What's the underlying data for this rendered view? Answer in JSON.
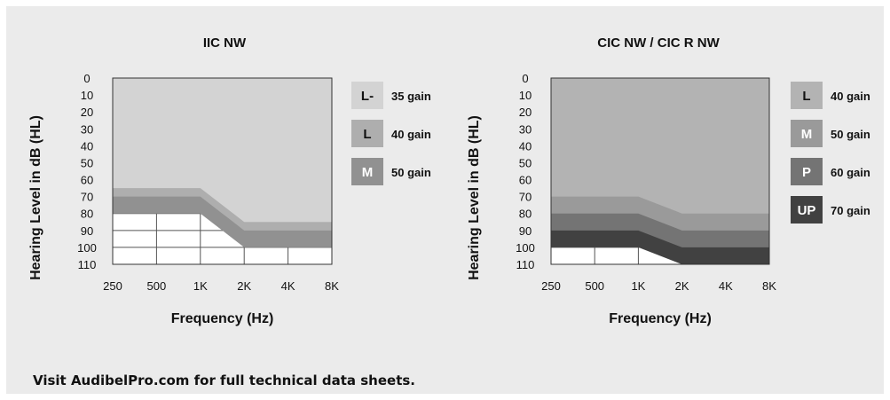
{
  "footer": {
    "text": "Visit AudibelPro.com for full technical data sheets."
  },
  "chart_data": [
    {
      "type": "area",
      "title": "IIC NW",
      "xlabel": "Frequency (Hz)",
      "ylabel": "Hearing Level in dB (HL)",
      "x_ticks": [
        "250",
        "500",
        "1K",
        "2K",
        "4K",
        "8K"
      ],
      "y_ticks": [
        "0",
        "10",
        "20",
        "30",
        "40",
        "50",
        "60",
        "70",
        "80",
        "90",
        "100",
        "110"
      ],
      "ylim": [
        0,
        110
      ],
      "y_inverted": true,
      "grid": "below-fitting-range",
      "legend_position": "right",
      "bands": [
        {
          "code": "L-",
          "label": "35 gain",
          "color": "#d3d3d3",
          "lower": [
            65,
            65,
            65,
            85,
            85,
            85
          ]
        },
        {
          "code": "L",
          "label": "40 gain",
          "color": "#aeaeae",
          "lower": [
            70,
            70,
            70,
            90,
            90,
            90
          ]
        },
        {
          "code": "M",
          "label": "50 gain",
          "color": "#919191",
          "lower": [
            80,
            80,
            80,
            100,
            100,
            100
          ]
        }
      ]
    },
    {
      "type": "area",
      "title": "CIC NW / CIC R NW",
      "xlabel": "Frequency (Hz)",
      "ylabel": "Hearing Level in dB (HL)",
      "x_ticks": [
        "250",
        "500",
        "1K",
        "2K",
        "4K",
        "8K"
      ],
      "y_ticks": [
        "0",
        "10",
        "20",
        "30",
        "40",
        "50",
        "60",
        "70",
        "80",
        "90",
        "100",
        "110"
      ],
      "ylim": [
        0,
        110
      ],
      "y_inverted": true,
      "grid": "below-fitting-range",
      "legend_position": "right",
      "bands": [
        {
          "code": "L",
          "label": "40 gain",
          "color": "#b3b3b3",
          "lower": [
            70,
            70,
            70,
            80,
            80,
            80
          ]
        },
        {
          "code": "M",
          "label": "50 gain",
          "color": "#9a9a9a",
          "lower": [
            80,
            80,
            80,
            90,
            90,
            90
          ]
        },
        {
          "code": "P",
          "label": "60 gain",
          "color": "#747474",
          "lower": [
            90,
            90,
            90,
            100,
            100,
            100
          ]
        },
        {
          "code": "UP",
          "label": "70 gain",
          "color": "#414141",
          "lower": [
            100,
            100,
            100,
            110,
            110,
            110
          ]
        }
      ]
    }
  ]
}
